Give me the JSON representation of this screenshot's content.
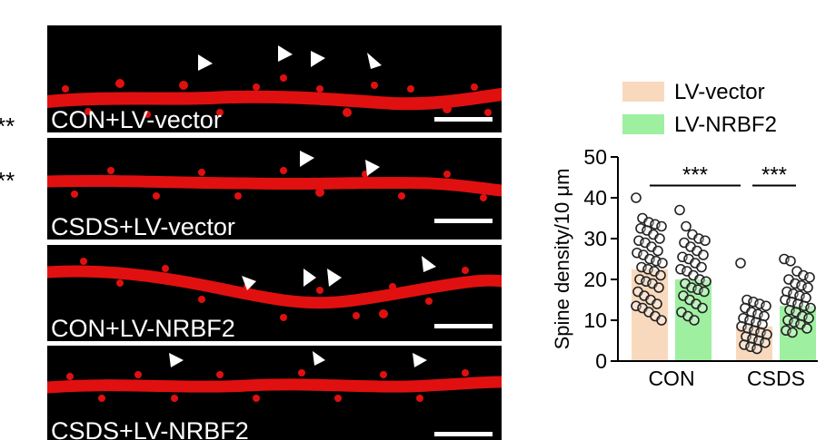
{
  "panels": [
    {
      "label": "CON+LV-vector"
    },
    {
      "label": "CSDS+LV-vector"
    },
    {
      "label": "CON+LV-NRBF2"
    },
    {
      "label": "CSDS+LV-NRBF2"
    }
  ],
  "edge_marks": [
    "**",
    "**"
  ],
  "colors": {
    "lv_vector": "#f9d9bd",
    "lv_nrbf2": "#9ef0a0",
    "dendrite": "#e01010"
  },
  "chart_data": {
    "type": "bar",
    "categories": [
      "CON",
      "CSDS"
    ],
    "ylabel": "Spine density/10 μm",
    "ylim": [
      0,
      50
    ],
    "yticks": [
      0,
      10,
      20,
      30,
      40,
      50
    ],
    "legend_position": "top",
    "series": [
      {
        "name": "LV-vector",
        "values": [
          22.5,
          8.5
        ],
        "points": [
          [
            40,
            35,
            34,
            33.5,
            33,
            32.5,
            32,
            31,
            30,
            29.5,
            29,
            28,
            27,
            26.5,
            26,
            25,
            24.5,
            24,
            23,
            22.5,
            22,
            21,
            20,
            19.5,
            19,
            18,
            17,
            16,
            15,
            14,
            13.5,
            13,
            12,
            11,
            10
          ],
          [
            24,
            15,
            14.5,
            14,
            13.5,
            13,
            12,
            11.5,
            11,
            10.5,
            10,
            9.5,
            9,
            8.5,
            8,
            7.5,
            7,
            6.5,
            6,
            5.5,
            5,
            4.5,
            4,
            3.5,
            3
          ]
        ]
      },
      {
        "name": "LV-NRBF2",
        "values": [
          20,
          13.5
        ],
        "points": [
          [
            37,
            33,
            31,
            30,
            29.5,
            29,
            28,
            27,
            26,
            25.5,
            25,
            24,
            23,
            22.5,
            22,
            21,
            20,
            19.5,
            19,
            18,
            17.5,
            17,
            16,
            15,
            14,
            13,
            12,
            11,
            10
          ],
          [
            25,
            24.5,
            22,
            21,
            20.5,
            20,
            19,
            18.5,
            18,
            17,
            16.5,
            16,
            15.5,
            15,
            14.5,
            14,
            13.5,
            13,
            12.5,
            12,
            11,
            10.5,
            10,
            9.5,
            9,
            8,
            7.5,
            7
          ]
        ]
      }
    ],
    "significance": [
      {
        "group_pair": [
          "CON",
          "CSDS"
        ],
        "series": "LV-vector",
        "label": "***"
      },
      {
        "group_pair": [
          "CSDS",
          "CSDS"
        ],
        "series": "both",
        "label": "***"
      }
    ]
  }
}
